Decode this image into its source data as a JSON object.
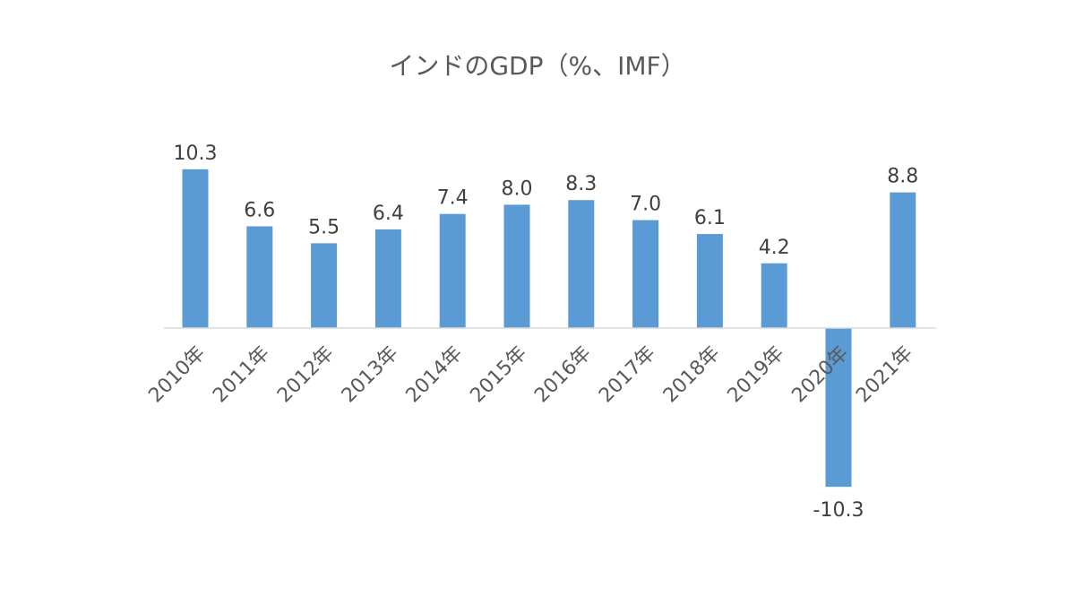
{
  "chart_data": {
    "type": "bar",
    "title": "インドのGDP（%、IMF）",
    "categories": [
      "2010年",
      "2011年",
      "2012年",
      "2013年",
      "2014年",
      "2015年",
      "2016年",
      "2017年",
      "2018年",
      "2019年",
      "2020年",
      "2021年"
    ],
    "values": [
      10.3,
      6.6,
      5.5,
      6.4,
      7.4,
      8.0,
      8.3,
      7.0,
      6.1,
      4.2,
      -10.3,
      8.8
    ],
    "data_labels": [
      "10.3",
      "6.6",
      "5.5",
      "6.4",
      "7.4",
      "8.0",
      "8.3",
      "7.0",
      "6.1",
      "4.2",
      "-10.3",
      "8.8"
    ],
    "ylim": [
      -10.3,
      10.3
    ],
    "grid": false,
    "legend": "none",
    "colors": {
      "bar": "#5b9bd5"
    }
  }
}
